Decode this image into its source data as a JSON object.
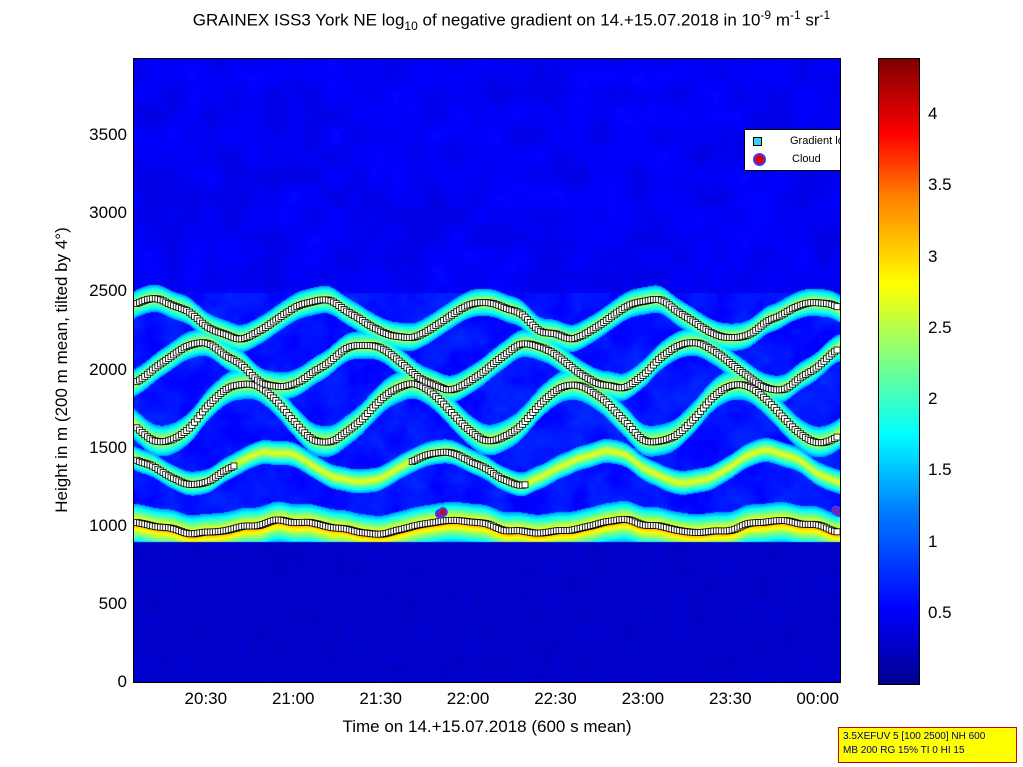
{
  "title": {
    "part1": "GRAINEX ISS3 York NE log",
    "sub": "10",
    "part2": " of negative gradient on 14.+15.07.2018 in 10",
    "sup1": "-9",
    "part3": " m",
    "sup2": "-1",
    "part4": " sr",
    "sup3": "-1"
  },
  "legend": {
    "gradient_min": "Gradient local minimum",
    "cloud": "Cloud"
  },
  "footer": {
    "line1": "3.5XEFUV 5 [100 2500] NH 600",
    "line2": "MB 200 RG 15% TI 0 HI 15"
  },
  "chart_data": {
    "type": "heatmap",
    "xlabel": "Time on 14.+15.07.2018 (600 s mean)",
    "ylabel": "Height in m (200 m mean, tilted by 4°)",
    "xlim_minutes": [
      1205,
      1448
    ],
    "ylim": [
      0,
      4000
    ],
    "x_ticks": [
      {
        "label": "20:30",
        "min": 1230
      },
      {
        "label": "21:00",
        "min": 1260
      },
      {
        "label": "21:30",
        "min": 1290
      },
      {
        "label": "22:00",
        "min": 1320
      },
      {
        "label": "22:30",
        "min": 1350
      },
      {
        "label": "23:00",
        "min": 1380
      },
      {
        "label": "23:30",
        "min": 1410
      },
      {
        "label": "00:00",
        "min": 1440
      }
    ],
    "y_ticks": [
      0,
      500,
      1000,
      1500,
      2000,
      2500,
      3000,
      3500
    ],
    "colorbar": {
      "range": [
        0,
        4.4
      ],
      "ticks": [
        "0.5",
        "1",
        "1.5",
        "2",
        "2.5",
        "3",
        "3.5",
        "4"
      ],
      "colors": [
        "#00008f",
        "#0000ff",
        "#0080ff",
        "#00ffff",
        "#80ff80",
        "#ffff00",
        "#ff8000",
        "#ff0000",
        "#800000"
      ]
    },
    "series": [
      {
        "name": "Gradient local minimum",
        "marker": "square",
        "color": "#33d6f0"
      },
      {
        "name": "Cloud",
        "marker": "circle",
        "color": "#e00000"
      }
    ],
    "layers": [
      {
        "y_base": 1000,
        "amp": 40,
        "thick": 60
      },
      {
        "y_base": 1750,
        "amp": 180,
        "thick": 45
      },
      {
        "y_base": 2050,
        "amp": 140,
        "thick": 40
      },
      {
        "y_base": 2350,
        "amp": 120,
        "thick": 40
      },
      {
        "y_base": 1400,
        "amp": 100,
        "thick": 35
      }
    ],
    "cloud_points": [
      {
        "x": 1310,
        "y": 1090
      },
      {
        "x": 1311,
        "y": 1100
      },
      {
        "x": 1446,
        "y": 1110
      },
      {
        "x": 1447,
        "y": 1100
      },
      {
        "x": 1448,
        "y": 1110
      }
    ]
  }
}
